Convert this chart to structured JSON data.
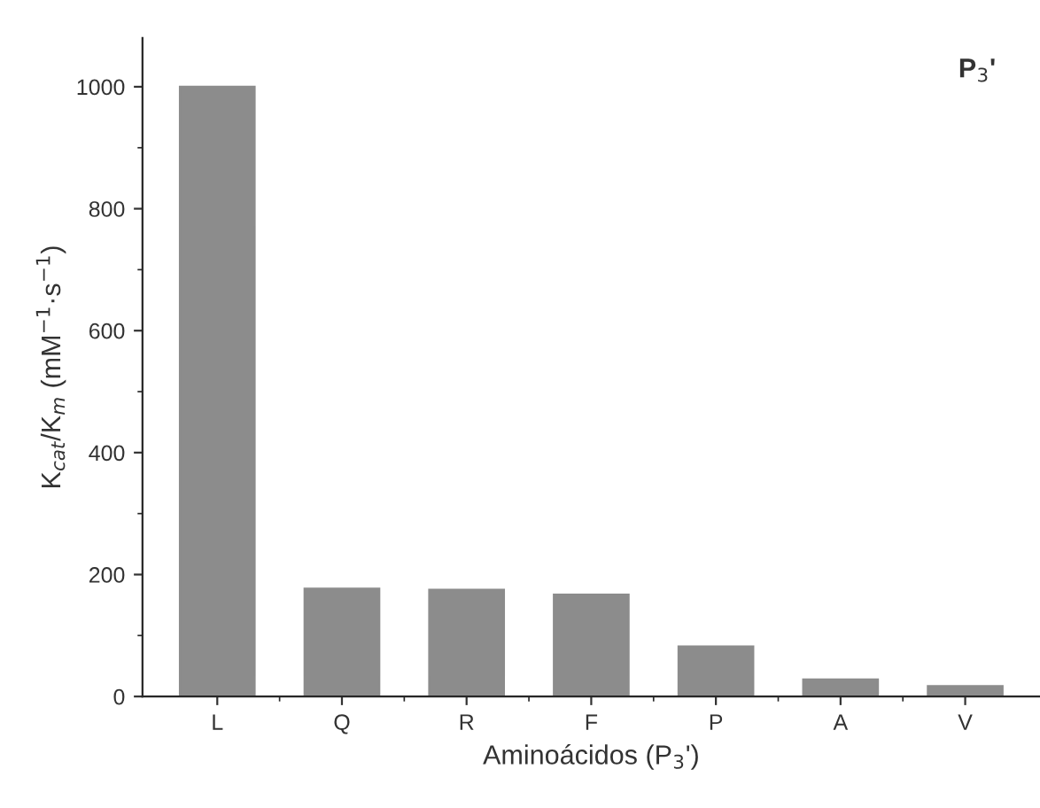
{
  "chart_data": {
    "type": "bar",
    "categories": [
      "L",
      "Q",
      "R",
      "F",
      "P",
      "A",
      "V"
    ],
    "values": [
      1000,
      177,
      175,
      167,
      82,
      28,
      17
    ],
    "color": "#8c8c8c",
    "xlabel": "Aminoácidos (P$_{3}$')",
    "ylabel": "K$_{cat}$/K$_{m}$ (mM$^{−1}$·s$^{−1}$)",
    "annotations": [
      "P$_{3}$'"
    ],
    "ylim": [
      0,
      1080
    ],
    "yticks": [
      0,
      200,
      400,
      600,
      800,
      1000
    ],
    "grid": false,
    "legend": false
  }
}
